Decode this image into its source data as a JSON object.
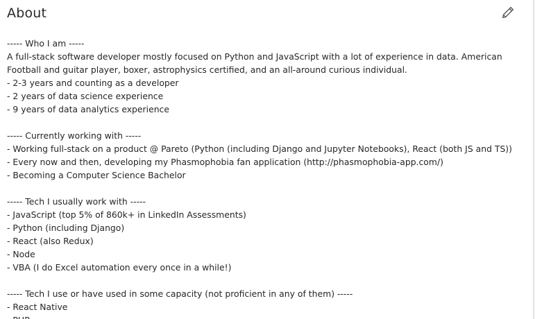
{
  "about": {
    "title": "About",
    "edit_icon": "pencil-icon"
  },
  "content": {
    "lines": [
      "----- Who I am -----",
      "A full-stack software developer mostly focused on Python and JavaScript with a lot of experience in data. American",
      "Football and guitar player, boxer, astrophysics certified, and an all-around curious individual.",
      "- 2-3 years and counting as a developer",
      "- 2 years of data science experience",
      "- 9 years of data analytics experience",
      "",
      "----- Currently working with -----",
      "- Working full-stack on a product @ Pareto (Python (including Django and Jupyter Notebooks), React (both JS and TS))",
      "- Every now and then, developing my Phasmophobia fan application (http://phasmophobia-app.com/)",
      "- Becoming a Computer Science Bachelor",
      "",
      "----- Tech I usually work with -----",
      "- JavaScript (top 5% of 860k+ in LinkedIn Assessments)",
      "- Python (including Django)",
      "- React (also Redux)",
      "- Node",
      "- VBA (I do Excel automation every once in a while!)",
      "",
      "----- Tech I use or have used in some capacity (not proficient in any of them) -----",
      "- React Native",
      "- PHP"
    ]
  }
}
